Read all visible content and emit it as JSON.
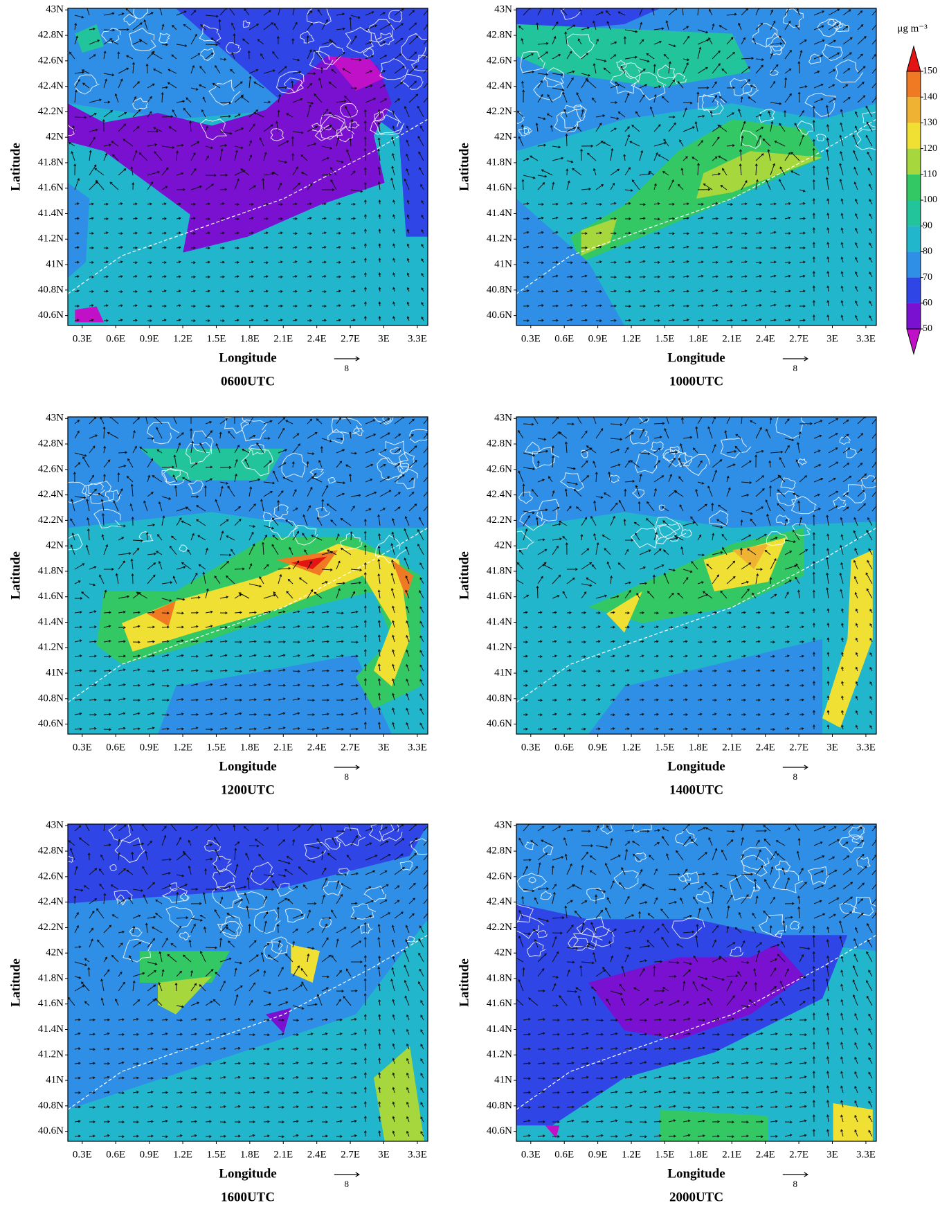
{
  "panels": [
    {
      "title": "0600UTC",
      "x_label": "Longitude",
      "y_label": "Latitude",
      "arrow_scale": "8",
      "xticks": [
        "0.3E",
        "0.6E",
        "0.9E",
        "1.2E",
        "1.5E",
        "1.8E",
        "2.1E",
        "2.4E",
        "2.7E",
        "3E",
        "3.3E"
      ],
      "yticks": [
        "43N",
        "42.8N",
        "42.6N",
        "42.4N",
        "42.2N",
        "42N",
        "41.8N",
        "41.6N",
        "41.4N",
        "41.2N",
        "41N",
        "40.8N",
        "40.6N"
      ]
    },
    {
      "title": "1000UTC",
      "x_label": "Longitude",
      "y_label": "Latitude",
      "arrow_scale": "8",
      "xticks": [
        "0.3E",
        "0.6E",
        "0.9E",
        "1.2E",
        "1.5E",
        "1.8E",
        "2.1E",
        "2.4E",
        "2.7E",
        "3E",
        "3.3E"
      ],
      "yticks": [
        "43N",
        "42.8N",
        "42.6N",
        "42.4N",
        "42.2N",
        "42N",
        "41.8N",
        "41.6N",
        "41.4N",
        "41.2N",
        "41N",
        "40.8N",
        "40.6N"
      ]
    },
    {
      "title": "1200UTC",
      "x_label": "Longitude",
      "y_label": "Latitude",
      "arrow_scale": "8",
      "xticks": [
        "0.3E",
        "0.6E",
        "0.9E",
        "1.2E",
        "1.5E",
        "1.8E",
        "2.1E",
        "2.4E",
        "2.7E",
        "3E",
        "3.3E"
      ],
      "yticks": [
        "43N",
        "42.8N",
        "42.6N",
        "42.4N",
        "42.2N",
        "42N",
        "41.8N",
        "41.6N",
        "41.4N",
        "41.2N",
        "41N",
        "40.8N",
        "40.6N"
      ]
    },
    {
      "title": "1400UTC",
      "x_label": "Longitude",
      "y_label": "Latitude",
      "arrow_scale": "8",
      "xticks": [
        "0.3E",
        "0.6E",
        "0.9E",
        "1.2E",
        "1.5E",
        "1.8E",
        "2.1E",
        "2.4E",
        "2.7E",
        "3E",
        "3.3E"
      ],
      "yticks": [
        "43N",
        "42.8N",
        "42.6N",
        "42.4N",
        "42.2N",
        "42N",
        "41.8N",
        "41.6N",
        "41.4N",
        "41.2N",
        "41N",
        "40.8N",
        "40.6N"
      ]
    },
    {
      "title": "1600UTC",
      "x_label": "Longitude",
      "y_label": "Latitude",
      "arrow_scale": "8",
      "xticks": [
        "0.3E",
        "0.6E",
        "0.9E",
        "1.2E",
        "1.5E",
        "1.8E",
        "2.1E",
        "2.4E",
        "2.7E",
        "3E",
        "3.3E"
      ],
      "yticks": [
        "43N",
        "42.8N",
        "42.6N",
        "42.4N",
        "42.2N",
        "42N",
        "41.8N",
        "41.6N",
        "41.4N",
        "41.2N",
        "41N",
        "40.8N",
        "40.6N"
      ]
    },
    {
      "title": "2000UTC",
      "x_label": "Longitude",
      "y_label": "Latitude",
      "arrow_scale": "8",
      "xticks": [
        "0.3E",
        "0.6E",
        "0.9E",
        "1.2E",
        "1.5E",
        "1.8E",
        "2.1E",
        "2.4E",
        "2.7E",
        "3E",
        "3.3E"
      ],
      "yticks": [
        "43N",
        "42.8N",
        "42.6N",
        "42.4N",
        "42.2N",
        "42N",
        "41.8N",
        "41.6N",
        "41.4N",
        "41.2N",
        "41N",
        "40.8N",
        "40.6N"
      ]
    }
  ],
  "colorbar": {
    "unit": "μg m⁻³",
    "ticks": [
      50,
      60,
      70,
      80,
      90,
      100,
      110,
      120,
      130,
      140,
      150
    ],
    "colors": [
      "#c010c8",
      "#7a10d0",
      "#2f45e6",
      "#2f8fe6",
      "#22b6cc",
      "#22c49c",
      "#34c864",
      "#a6d83e",
      "#f0e034",
      "#f0b232",
      "#f07a24",
      "#e41414"
    ]
  }
}
